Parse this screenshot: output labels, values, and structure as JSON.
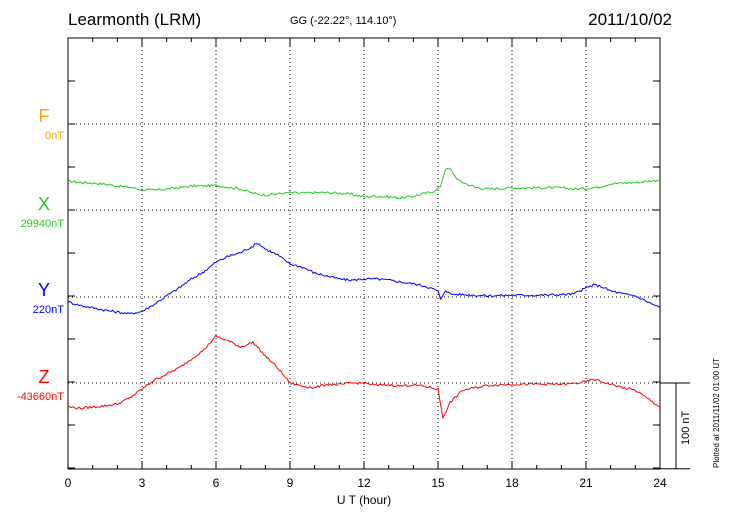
{
  "header": {
    "station": "Learmonth (LRM)",
    "coords": "GG (-22.22°, 114.10°)",
    "date": "2011/10/02"
  },
  "components": [
    {
      "letter": "F",
      "baseline": "0nT",
      "color": "#FFA500"
    },
    {
      "letter": "X",
      "baseline": "29940nT",
      "color": "#22CC22"
    },
    {
      "letter": "Y",
      "baseline": "220nT",
      "color": "#0000FF"
    },
    {
      "letter": "Z",
      "baseline": "-43660nT",
      "color": "#FF0000"
    }
  ],
  "scale_bar": {
    "label": "100 nT"
  },
  "plotted_at": "Plotted at 2011/11/02 01:00 UT",
  "chart_data": {
    "type": "line",
    "xlabel": "U T (hour)",
    "xlim": [
      0,
      24
    ],
    "xticks": [
      "0",
      "3",
      "6",
      "9",
      "12",
      "15",
      "18",
      "21",
      "24"
    ],
    "grid": true,
    "series": [
      {
        "name": "X",
        "color": "#22CC22",
        "x": [
          0,
          0.5,
          1,
          1.5,
          2,
          2.5,
          3,
          3.5,
          4,
          4.5,
          5,
          5.5,
          6,
          6.5,
          7,
          7.5,
          7.8,
          8,
          8.5,
          9,
          9.5,
          10,
          10.5,
          11,
          11.5,
          12,
          12.5,
          13,
          13.5,
          14,
          14.5,
          14.9,
          15.1,
          15.3,
          15.5,
          15.8,
          16,
          16.5,
          17,
          18,
          19,
          20,
          20.5,
          21,
          21.5,
          22,
          23,
          24
        ],
        "y": [
          48,
          46,
          45,
          43,
          40,
          38,
          34,
          33,
          35,
          37,
          40,
          40,
          41,
          38,
          35,
          28,
          26,
          25,
          27,
          29,
          28,
          29,
          29,
          28,
          26,
          22,
          23,
          22,
          20,
          23,
          28,
          32,
          40,
          68,
          68,
          50,
          46,
          38,
          35,
          37,
          37,
          37,
          35,
          36,
          38,
          44,
          46,
          50
        ]
      },
      {
        "name": "Y",
        "color": "#0000FF",
        "x": [
          0,
          0.5,
          1,
          1.5,
          2,
          2.5,
          3,
          3.5,
          4,
          4.5,
          5,
          5.5,
          6,
          6.5,
          7,
          7.5,
          7.7,
          8,
          8.5,
          9,
          9.5,
          10,
          10.5,
          11,
          11.5,
          12,
          12.5,
          13,
          13.5,
          14,
          14.5,
          15,
          15.1,
          15.3,
          15.5,
          16,
          17,
          18,
          19,
          20,
          20.5,
          21,
          21.3,
          21.6,
          22,
          22.5,
          23,
          24
        ],
        "y": [
          -8,
          -14,
          -18,
          -22,
          -25,
          -28,
          -24,
          -12,
          2,
          15,
          30,
          42,
          58,
          68,
          74,
          85,
          90,
          80,
          70,
          55,
          50,
          40,
          35,
          30,
          28,
          30,
          30,
          28,
          25,
          22,
          18,
          10,
          -5,
          12,
          5,
          4,
          2,
          3,
          3,
          4,
          5,
          15,
          20,
          18,
          10,
          5,
          2,
          -18
        ]
      },
      {
        "name": "Z",
        "color": "#FF0000",
        "x": [
          0,
          0.5,
          1,
          1.5,
          2,
          2.5,
          3,
          3.5,
          4,
          4.5,
          5,
          5.5,
          6,
          6.5,
          7,
          7.5,
          8,
          8.5,
          9,
          9.5,
          10,
          10.5,
          11,
          11.5,
          12,
          12.5,
          13,
          13.5,
          14,
          14.5,
          15,
          15.2,
          15.5,
          16,
          17,
          18,
          19,
          20,
          20.5,
          21,
          21.3,
          21.5,
          22,
          22.5,
          23,
          24
        ],
        "y": [
          -40,
          -42,
          -40,
          -38,
          -35,
          -25,
          -10,
          5,
          15,
          25,
          40,
          55,
          78,
          70,
          60,
          68,
          45,
          25,
          0,
          -5,
          -8,
          -2,
          -3,
          0,
          0,
          -4,
          -3,
          -5,
          -3,
          -6,
          -10,
          -58,
          -32,
          -12,
          -4,
          -2,
          -2,
          -2,
          -1,
          2,
          6,
          4,
          -2,
          -8,
          -12,
          -40
        ]
      }
    ]
  }
}
